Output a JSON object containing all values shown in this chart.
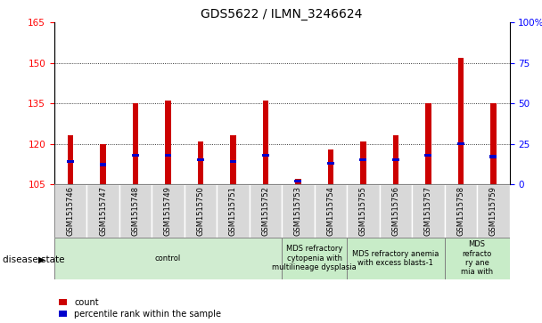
{
  "title": "GDS5622 / ILMN_3246624",
  "samples": [
    "GSM1515746",
    "GSM1515747",
    "GSM1515748",
    "GSM1515749",
    "GSM1515750",
    "GSM1515751",
    "GSM1515752",
    "GSM1515753",
    "GSM1515754",
    "GSM1515755",
    "GSM1515756",
    "GSM1515757",
    "GSM1515758",
    "GSM1515759"
  ],
  "counts": [
    123,
    120,
    135,
    136,
    121,
    123,
    136,
    107,
    118,
    121,
    123,
    135,
    152,
    135
  ],
  "percentile_ranks": [
    14,
    12,
    18,
    18,
    15,
    14,
    18,
    2,
    13,
    15,
    15,
    18,
    25,
    17
  ],
  "ylim_left": [
    105,
    165
  ],
  "ylim_right": [
    0,
    100
  ],
  "yticks_left": [
    105,
    120,
    135,
    150,
    165
  ],
  "yticks_right": [
    0,
    25,
    50,
    75,
    100
  ],
  "bar_color": "#cc0000",
  "marker_color": "#0000cc",
  "sample_bg_color": "#d8d8d8",
  "disease_groups": [
    {
      "label": "control",
      "start": 0,
      "end": 7,
      "color": "#d0ecd0"
    },
    {
      "label": "MDS refractory\ncytopenia with\nmultilineage dysplasia",
      "start": 7,
      "end": 9,
      "color": "#c8ecc8"
    },
    {
      "label": "MDS refractory anemia\nwith excess blasts-1",
      "start": 9,
      "end": 12,
      "color": "#c8ecc8"
    },
    {
      "label": "MDS\nrefracto\nry ane\nmia with",
      "start": 12,
      "end": 14,
      "color": "#c8ecc8"
    }
  ],
  "legend_count_label": "count",
  "legend_pct_label": "percentile rank within the sample",
  "disease_state_label": "disease state",
  "title_fontsize": 10,
  "tick_fontsize": 7.5,
  "label_fontsize": 7
}
